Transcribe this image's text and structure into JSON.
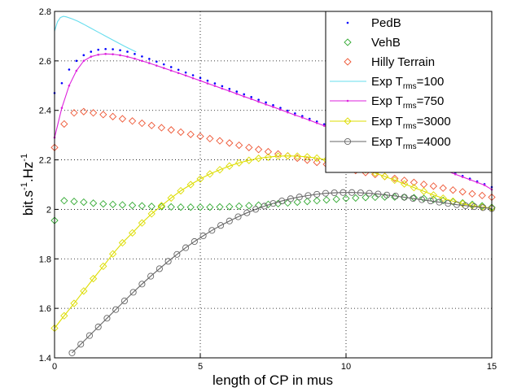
{
  "chart_data": {
    "type": "line",
    "title": "",
    "xlabel": "length of CP in mus",
    "ylabel_parts": [
      "bit.s",
      "-1",
      ".Hz",
      "-1"
    ],
    "xlim": [
      0,
      15
    ],
    "ylim": [
      1.4,
      2.8
    ],
    "x_ticks": [
      "0",
      "5",
      "10",
      "15"
    ],
    "y_ticks": [
      "1.4",
      "1.6",
      "1.8",
      "2",
      "2.2",
      "2.4",
      "2.6",
      "2.8"
    ],
    "grid": true,
    "legend_placement": "top-right",
    "series": [
      {
        "name": "PedB",
        "marker": "dot",
        "color": "#0000ff",
        "x": [
          0,
          0.25,
          0.5,
          0.75,
          1.0,
          1.25,
          1.5,
          1.75,
          2.0,
          2.25,
          2.5,
          2.75,
          3.0,
          3.25,
          3.5,
          3.75,
          4.0,
          4.25,
          4.5,
          4.75,
          5.0,
          5.25,
          5.5,
          5.75,
          6.0,
          6.25,
          6.5,
          6.75,
          7.0,
          7.25,
          7.5,
          7.75,
          8.0,
          8.25,
          8.5,
          8.75,
          9.0,
          9.25,
          9.5,
          9.75,
          10.0,
          10.25,
          10.5,
          10.75,
          11.0,
          11.25,
          11.5,
          11.75,
          12.0,
          12.25,
          12.5,
          12.75,
          13.0,
          13.25,
          13.5,
          13.75,
          14.0,
          14.25,
          14.5,
          14.75,
          15.0
        ],
        "y": [
          2.47,
          2.51,
          2.565,
          2.6,
          2.623,
          2.637,
          2.645,
          2.648,
          2.647,
          2.643,
          2.637,
          2.628,
          2.618,
          2.608,
          2.597,
          2.586,
          2.575,
          2.564,
          2.553,
          2.542,
          2.531,
          2.52,
          2.509,
          2.498,
          2.487,
          2.476,
          2.465,
          2.454,
          2.443,
          2.432,
          2.421,
          2.41,
          2.399,
          2.388,
          2.377,
          2.366,
          2.355,
          2.344,
          2.333,
          2.322,
          2.311,
          2.3,
          2.289,
          2.278,
          2.267,
          2.256,
          2.245,
          2.234,
          2.223,
          2.212,
          2.201,
          2.19,
          2.179,
          2.168,
          2.157,
          2.146,
          2.135,
          2.124,
          2.113,
          2.102,
          2.09
        ]
      },
      {
        "name": "VehB",
        "marker": "diamond",
        "color": "#33aa33",
        "x": [
          0,
          0.33,
          0.67,
          1.0,
          1.33,
          1.67,
          2.0,
          2.33,
          2.67,
          3.0,
          3.33,
          3.67,
          4.0,
          4.33,
          4.67,
          5.0,
          5.33,
          5.67,
          6.0,
          6.33,
          6.67,
          7.0,
          7.33,
          7.67,
          8.0,
          8.33,
          8.67,
          9.0,
          9.33,
          9.67,
          10.0,
          10.33,
          10.67,
          11.0,
          11.33,
          11.67,
          12.0,
          12.33,
          12.67,
          13.0,
          13.33,
          13.67,
          14.0,
          14.33,
          14.67,
          15.0
        ],
        "y": [
          1.955,
          2.035,
          2.032,
          2.029,
          2.025,
          2.022,
          2.02,
          2.018,
          2.016,
          2.014,
          2.012,
          2.011,
          2.01,
          2.009,
          2.009,
          2.009,
          2.009,
          2.01,
          2.011,
          2.013,
          2.015,
          2.017,
          2.02,
          2.023,
          2.026,
          2.029,
          2.032,
          2.035,
          2.038,
          2.041,
          2.044,
          2.046,
          2.048,
          2.049,
          2.05,
          2.05,
          2.049,
          2.047,
          2.044,
          2.04,
          2.036,
          2.031,
          2.026,
          2.02,
          2.014,
          2.008
        ]
      },
      {
        "name": "Hilly Terrain",
        "marker": "diamond",
        "color": "#ee5533",
        "x": [
          0,
          0.33,
          0.67,
          1.0,
          1.33,
          1.67,
          2.0,
          2.33,
          2.67,
          3.0,
          3.33,
          3.67,
          4.0,
          4.33,
          4.67,
          5.0,
          5.33,
          5.67,
          6.0,
          6.33,
          6.67,
          7.0,
          7.33,
          7.67,
          8.0,
          8.33,
          8.67,
          9.0,
          9.33,
          9.67,
          10.0,
          10.33,
          10.67,
          11.0,
          11.33,
          11.67,
          12.0,
          12.33,
          12.67,
          13.0,
          13.33,
          13.67,
          14.0,
          14.33,
          14.67,
          15.0
        ],
        "y": [
          2.25,
          2.345,
          2.39,
          2.395,
          2.39,
          2.383,
          2.375,
          2.366,
          2.357,
          2.348,
          2.339,
          2.33,
          2.321,
          2.312,
          2.303,
          2.295,
          2.286,
          2.277,
          2.268,
          2.259,
          2.25,
          2.242,
          2.233,
          2.224,
          2.216,
          2.207,
          2.199,
          2.19,
          2.182,
          2.173,
          2.165,
          2.157,
          2.149,
          2.141,
          2.133,
          2.125,
          2.117,
          2.109,
          2.101,
          2.094,
          2.086,
          2.078,
          2.071,
          2.063,
          2.056,
          2.049
        ]
      },
      {
        "name": "Exp T",
        "name_subscript": "rms",
        "name_suffix": "=100",
        "marker": "none",
        "color": "#66ddee",
        "x": [
          0,
          0.1,
          0.2,
          0.3,
          0.4,
          0.6,
          0.8,
          1.0,
          1.2,
          1.5,
          1.8,
          2.1,
          2.4,
          2.8
        ],
        "y": [
          2.72,
          2.758,
          2.775,
          2.78,
          2.778,
          2.77,
          2.76,
          2.748,
          2.735,
          2.716,
          2.697,
          2.678,
          2.659,
          2.636
        ]
      },
      {
        "name": "Exp T",
        "name_subscript": "rms",
        "name_suffix": "=750",
        "marker": "dot",
        "color": "#dd22dd",
        "x": [
          0,
          0.25,
          0.5,
          0.75,
          1.0,
          1.25,
          1.5,
          1.75,
          2.0,
          2.25,
          2.5,
          2.75,
          3.0,
          3.25,
          3.5,
          3.75,
          4.0,
          4.25,
          4.5,
          4.75,
          5.0,
          5.25,
          5.5,
          5.75,
          6.0,
          6.25,
          6.5,
          6.75,
          7.0,
          7.25,
          7.5,
          7.75,
          8.0,
          8.25,
          8.5,
          8.75,
          9.0,
          9.25,
          9.5,
          9.75,
          10.0,
          10.25,
          10.5,
          10.75,
          11.0,
          11.25,
          11.5,
          11.75,
          12.0,
          12.25,
          12.5,
          12.75,
          13.0,
          13.25,
          13.5,
          13.75,
          14.0,
          14.25,
          14.5,
          14.75,
          15.0
        ],
        "y": [
          2.29,
          2.41,
          2.5,
          2.56,
          2.6,
          2.617,
          2.625,
          2.628,
          2.627,
          2.623,
          2.617,
          2.609,
          2.6,
          2.591,
          2.581,
          2.571,
          2.561,
          2.551,
          2.541,
          2.53,
          2.52,
          2.509,
          2.499,
          2.488,
          2.478,
          2.467,
          2.456,
          2.446,
          2.435,
          2.424,
          2.414,
          2.403,
          2.392,
          2.381,
          2.371,
          2.36,
          2.349,
          2.338,
          2.327,
          2.317,
          2.306,
          2.295,
          2.284,
          2.273,
          2.262,
          2.252,
          2.241,
          2.23,
          2.219,
          2.208,
          2.197,
          2.186,
          2.175,
          2.164,
          2.153,
          2.142,
          2.131,
          2.12,
          2.109,
          2.098,
          2.08
        ]
      },
      {
        "name": "Exp T",
        "name_subscript": "rms",
        "name_suffix": "=3000",
        "marker": "diamond",
        "color": "#dddd00",
        "x": [
          0,
          0.33,
          0.67,
          1.0,
          1.33,
          1.67,
          2.0,
          2.33,
          2.67,
          3.0,
          3.33,
          3.67,
          4.0,
          4.33,
          4.67,
          5.0,
          5.33,
          5.67,
          6.0,
          6.33,
          6.67,
          7.0,
          7.33,
          7.67,
          8.0,
          8.33,
          8.67,
          9.0,
          9.33,
          9.67,
          10.0,
          10.33,
          10.67,
          11.0,
          11.33,
          11.67,
          12.0,
          12.33,
          12.67,
          13.0,
          13.33,
          13.67,
          14.0,
          14.33,
          14.67,
          15.0
        ],
        "y": [
          1.52,
          1.57,
          1.62,
          1.67,
          1.72,
          1.77,
          1.82,
          1.865,
          1.905,
          1.945,
          1.982,
          2.015,
          2.046,
          2.075,
          2.1,
          2.123,
          2.143,
          2.16,
          2.175,
          2.188,
          2.198,
          2.206,
          2.211,
          2.215,
          2.216,
          2.215,
          2.212,
          2.207,
          2.2,
          2.192,
          2.183,
          2.172,
          2.16,
          2.147,
          2.133,
          2.118,
          2.103,
          2.088,
          2.073,
          2.058,
          2.045,
          2.033,
          2.023,
          2.015,
          2.009,
          2.005
        ]
      },
      {
        "name": "Exp T",
        "name_subscript": "rms",
        "name_suffix": "=4000",
        "marker": "circle",
        "color": "#666666",
        "x": [
          0.6,
          0.9,
          1.2,
          1.5,
          1.8,
          2.1,
          2.4,
          2.7,
          3.0,
          3.3,
          3.6,
          3.9,
          4.2,
          4.5,
          4.8,
          5.1,
          5.4,
          5.7,
          6.0,
          6.3,
          6.6,
          6.9,
          7.2,
          7.5,
          7.8,
          8.1,
          8.4,
          8.7,
          9.0,
          9.3,
          9.6,
          9.9,
          10.2,
          10.5,
          10.8,
          11.1,
          11.4,
          11.7,
          12.0,
          12.3,
          12.6,
          12.9,
          13.2,
          13.5,
          13.8,
          14.1,
          14.4,
          14.7,
          15.0
        ],
        "y": [
          1.42,
          1.455,
          1.49,
          1.525,
          1.56,
          1.595,
          1.63,
          1.665,
          1.698,
          1.73,
          1.76,
          1.79,
          1.818,
          1.845,
          1.87,
          1.893,
          1.915,
          1.935,
          1.953,
          1.97,
          1.986,
          2.0,
          2.013,
          2.024,
          2.034,
          2.043,
          2.05,
          2.056,
          2.061,
          2.065,
          2.067,
          2.068,
          2.068,
          2.067,
          2.065,
          2.062,
          2.058,
          2.054,
          2.049,
          2.044,
          2.039,
          2.034,
          2.029,
          2.024,
          2.019,
          2.015,
          2.011,
          2.007,
          2.003
        ]
      }
    ]
  }
}
